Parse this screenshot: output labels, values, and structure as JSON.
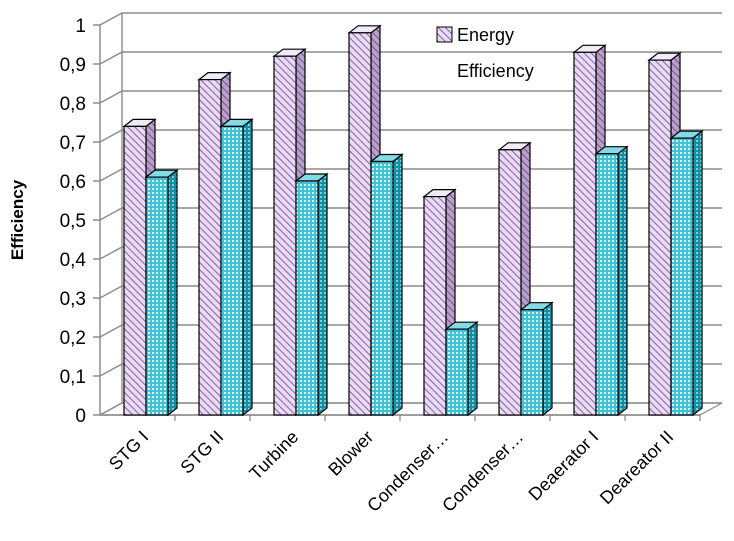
{
  "chart_data": {
    "type": "bar",
    "style": "3d-clustered-column",
    "categories": [
      "STG I",
      "STG II",
      "Turbine",
      "Blower",
      "Condenser…",
      "Condenser…",
      "Deaerator I",
      "Deareator II"
    ],
    "series": [
      {
        "name": "Energy",
        "values": [
          0.74,
          0.86,
          0.92,
          0.98,
          0.56,
          0.68,
          0.93,
          0.91
        ]
      },
      {
        "name": "",
        "values": [
          0.61,
          0.74,
          0.6,
          0.65,
          0.22,
          0.27,
          0.67,
          0.71
        ]
      }
    ],
    "legend_entries": [
      "Energy",
      "Efficiency"
    ],
    "title": "",
    "xlabel": "",
    "ylabel": "Efficiency",
    "ylim": [
      0,
      1
    ],
    "yticks": [
      "0",
      "0,1",
      "0,2",
      "0,3",
      "0,4",
      "0,5",
      "0,6",
      "0,7",
      "0,8",
      "0,9",
      "1"
    ],
    "grid": true,
    "legend_position": "top-right",
    "colors": {
      "energy_face": "#e7dcf0",
      "energy_hatch": "#8d5bb3",
      "energy_side": "#9d7bb4",
      "exergy_face": "#43c2d6",
      "exergy_dots": "#d9f4f8",
      "exergy_side": "#168ea2",
      "grid": "#8c8c8c",
      "axis": "#868686"
    }
  }
}
